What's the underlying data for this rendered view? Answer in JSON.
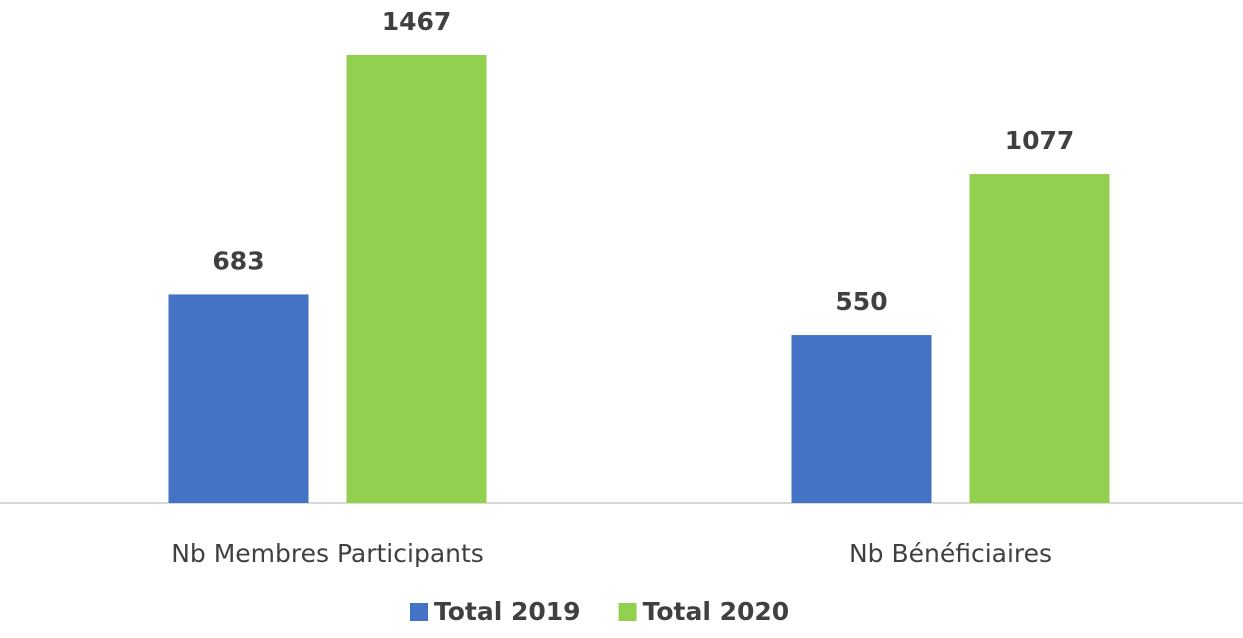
{
  "chart_data": {
    "type": "bar",
    "categories": [
      "Nb Membres Participants",
      "Nb Bénéficiaires"
    ],
    "series": [
      {
        "name": "Total 2019",
        "color": "#4472c4",
        "values": [
          683,
          550
        ]
      },
      {
        "name": "Total 2020",
        "color": "#92d050",
        "values": [
          1467,
          1077
        ]
      }
    ],
    "legend": "bottom"
  }
}
